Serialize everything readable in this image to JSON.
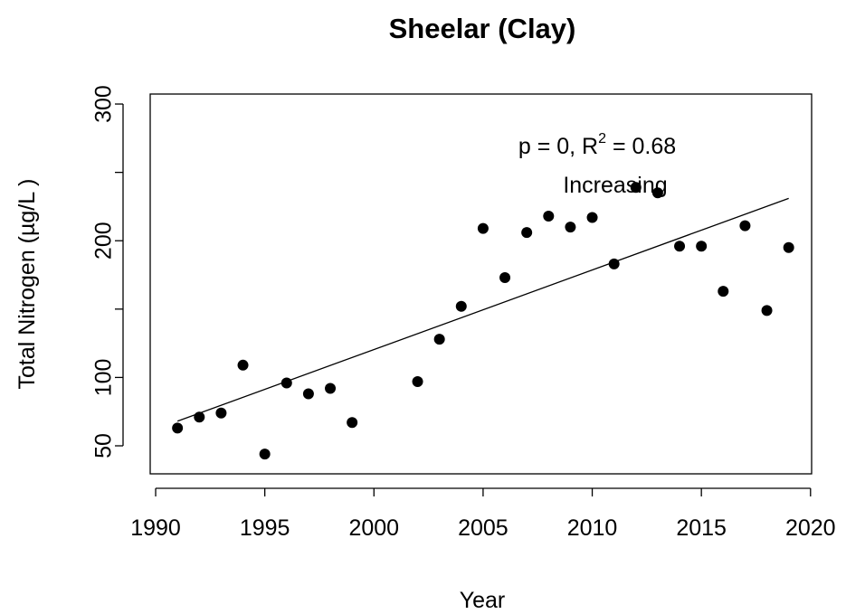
{
  "chart_data": {
    "type": "scatter",
    "title": "Sheelar (Clay)",
    "x_label": "Year",
    "y_label": "Total Nitrogen (µg/L )",
    "x": [
      1991,
      1992,
      1993,
      1994,
      1995,
      1996,
      1997,
      1998,
      1999,
      2002,
      2003,
      2004,
      2005,
      2006,
      2007,
      2008,
      2009,
      2010,
      2011,
      2012,
      2013,
      2014,
      2015,
      2016,
      2017,
      2018,
      2019
    ],
    "values": [
      63,
      71,
      74,
      109,
      44,
      96,
      88,
      92,
      67,
      97,
      128,
      152,
      209,
      173,
      206,
      218,
      210,
      217,
      183,
      239,
      235,
      196,
      196,
      163,
      211,
      149,
      195
    ],
    "color": "#000000",
    "trendline": {
      "x": [
        1991,
        2019
      ],
      "values": [
        68,
        231
      ]
    },
    "annotation_line1": [
      "p = 0, R",
      "2",
      " = 0.68"
    ],
    "annotation_line2": "Increasing",
    "xlim": [
      1989.75,
      2020.05
    ],
    "ylim": [
      29.5,
      307.3
    ],
    "xticks": [
      1990,
      1995,
      2000,
      2005,
      2010,
      2015,
      2020
    ],
    "yticks": [
      50,
      100,
      {
        "value": 150,
        "label": null
      },
      200,
      {
        "value": 250,
        "label": null
      },
      300
    ]
  }
}
